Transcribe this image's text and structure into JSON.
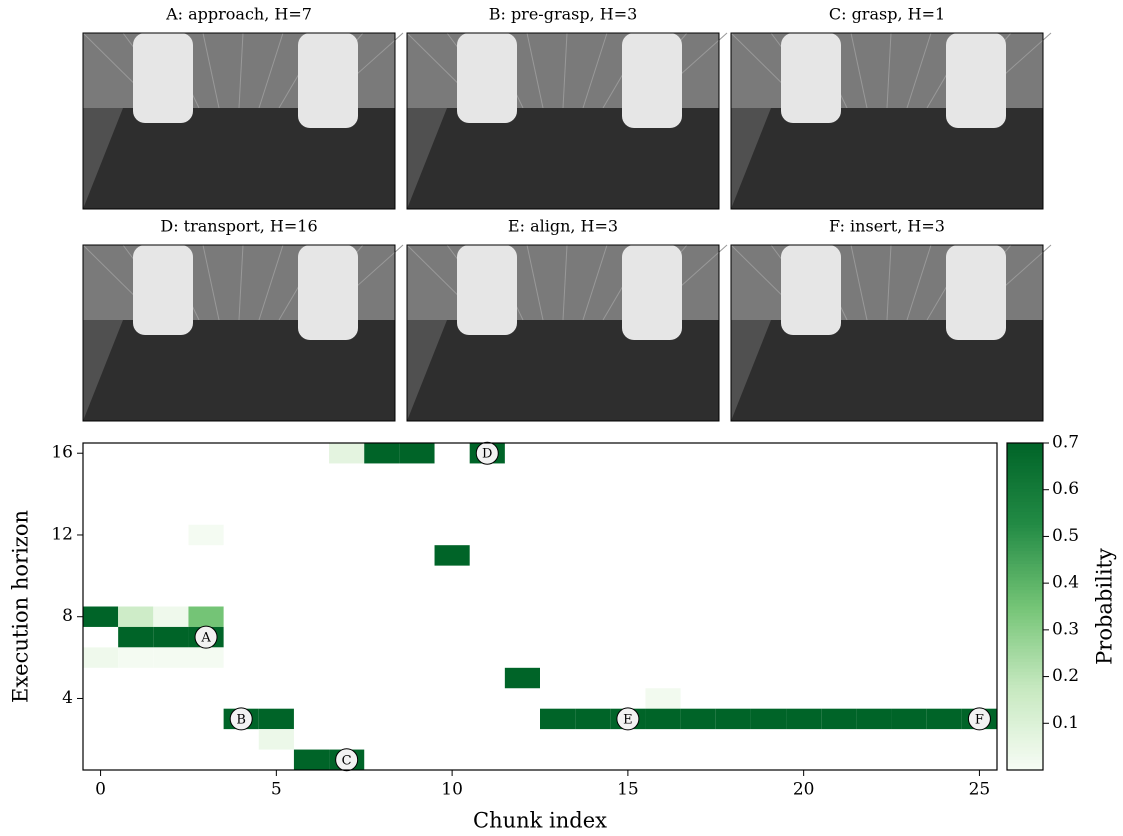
{
  "panels": [
    "A: approach, H=7",
    "B: pre-grasp, H=3",
    "C: grasp, H=1",
    "D: transport, H=16",
    "E: align, H=3",
    "F: insert, H=3"
  ],
  "chart_data": {
    "type": "heatmap",
    "x_label": "Chunk index",
    "y_label": "Execution horizon",
    "colorbar_label": "Probability",
    "xlim": [
      -0.5,
      25.5
    ],
    "xticks": [
      0,
      5,
      10,
      15,
      20,
      25
    ],
    "ylim": [
      0.5,
      16.5
    ],
    "yticks": [
      4,
      8,
      12,
      16
    ],
    "clim": [
      0,
      0.7
    ],
    "cticks": [
      0.1,
      0.2,
      0.3,
      0.4,
      0.5,
      0.6,
      0.7
    ],
    "colormap": [
      "#f7fcf5",
      "#c7e9c0",
      "#74c476",
      "#238b45",
      "#006428"
    ],
    "cells": [
      {
        "x": 7,
        "y": 16,
        "value": 0.07
      },
      {
        "x": 8,
        "y": 16,
        "value": 0.7
      },
      {
        "x": 9,
        "y": 16,
        "value": 0.7
      },
      {
        "x": 11,
        "y": 16,
        "value": 0.7
      },
      {
        "x": 3,
        "y": 12,
        "value": 0.01
      },
      {
        "x": 10,
        "y": 11,
        "value": 0.7
      },
      {
        "x": 0,
        "y": 8,
        "value": 0.7
      },
      {
        "x": 1,
        "y": 8,
        "value": 0.15
      },
      {
        "x": 2,
        "y": 8,
        "value": 0.03
      },
      {
        "x": 3,
        "y": 8,
        "value": 0.35
      },
      {
        "x": 1,
        "y": 7,
        "value": 0.7
      },
      {
        "x": 2,
        "y": 7,
        "value": 0.7
      },
      {
        "x": 3,
        "y": 7,
        "value": 0.7
      },
      {
        "x": 0,
        "y": 6,
        "value": 0.03
      },
      {
        "x": 1,
        "y": 6,
        "value": 0.01
      },
      {
        "x": 2,
        "y": 6,
        "value": 0.01
      },
      {
        "x": 3,
        "y": 6,
        "value": 0.01
      },
      {
        "x": 12,
        "y": 5,
        "value": 0.7
      },
      {
        "x": 16,
        "y": 4,
        "value": 0.02
      },
      {
        "x": 4,
        "y": 3,
        "value": 0.7
      },
      {
        "x": 5,
        "y": 3,
        "value": 0.7
      },
      {
        "x": 13,
        "y": 3,
        "value": 0.7
      },
      {
        "x": 14,
        "y": 3,
        "value": 0.7
      },
      {
        "x": 15,
        "y": 3,
        "value": 0.7
      },
      {
        "x": 16,
        "y": 3,
        "value": 0.7
      },
      {
        "x": 17,
        "y": 3,
        "value": 0.7
      },
      {
        "x": 18,
        "y": 3,
        "value": 0.7
      },
      {
        "x": 19,
        "y": 3,
        "value": 0.7
      },
      {
        "x": 20,
        "y": 3,
        "value": 0.7
      },
      {
        "x": 21,
        "y": 3,
        "value": 0.7
      },
      {
        "x": 22,
        "y": 3,
        "value": 0.7
      },
      {
        "x": 23,
        "y": 3,
        "value": 0.7
      },
      {
        "x": 24,
        "y": 3,
        "value": 0.7
      },
      {
        "x": 25,
        "y": 3,
        "value": 0.7
      },
      {
        "x": 5,
        "y": 2,
        "value": 0.04
      },
      {
        "x": 6,
        "y": 1,
        "value": 0.7
      },
      {
        "x": 7,
        "y": 1,
        "value": 0.7
      }
    ],
    "annotations": [
      {
        "label": "A",
        "x": 3,
        "y": 7
      },
      {
        "label": "B",
        "x": 4,
        "y": 3
      },
      {
        "label": "C",
        "x": 7,
        "y": 1
      },
      {
        "label": "D",
        "x": 11,
        "y": 16
      },
      {
        "label": "E",
        "x": 15,
        "y": 3
      },
      {
        "label": "F",
        "x": 25,
        "y": 3
      }
    ]
  }
}
